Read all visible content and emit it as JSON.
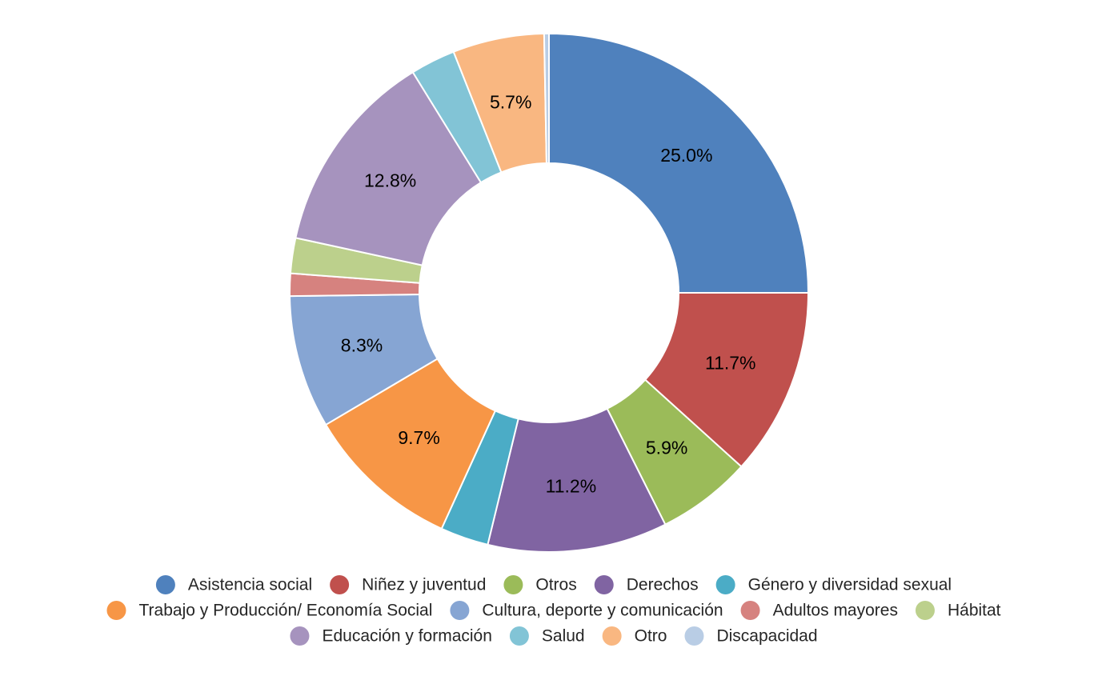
{
  "chart_data": {
    "type": "pie",
    "donut": true,
    "legend_position": "bottom",
    "slices": [
      {
        "name": "Asistencia social",
        "value": 25.0,
        "label": "25.0%",
        "color": "#4F81BD"
      },
      {
        "name": "Niñez y juventud",
        "value": 11.7,
        "label": "11.7%",
        "color": "#C0504D"
      },
      {
        "name": "Otros",
        "value": 5.9,
        "label": "5.9%",
        "color": "#9BBB59"
      },
      {
        "name": "Derechos",
        "value": 11.2,
        "label": "11.2%",
        "color": "#8064A2"
      },
      {
        "name": "Género y diversidad sexual",
        "value": 3.0,
        "label": "",
        "color": "#4BACC6"
      },
      {
        "name": "Trabajo y Producción/ Economía Social",
        "value": 9.7,
        "label": "9.7%",
        "color": "#F79646"
      },
      {
        "name": "Cultura, deporte y comunicación",
        "value": 8.3,
        "label": "8.3%",
        "color": "#86A5D3"
      },
      {
        "name": "Adultos mayores",
        "value": 1.4,
        "label": "",
        "color": "#D6827F"
      },
      {
        "name": "Hábitat",
        "value": 2.2,
        "label": "",
        "color": "#BCD08C"
      },
      {
        "name": "Educación y formación",
        "value": 12.8,
        "label": "12.8%",
        "color": "#A693BE"
      },
      {
        "name": "Salud",
        "value": 2.8,
        "label": "",
        "color": "#82C4D6"
      },
      {
        "name": "Otro",
        "value": 5.7,
        "label": "5.7%",
        "color": "#F9B781"
      },
      {
        "name": "Discapacidad",
        "value": 0.3,
        "label": "",
        "color": "#B9CDE5"
      }
    ]
  }
}
